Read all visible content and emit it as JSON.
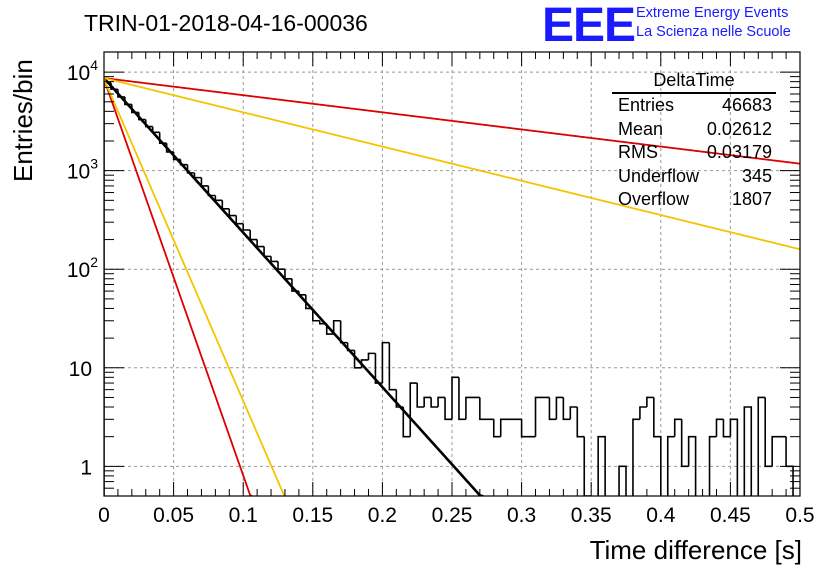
{
  "title": "TRIN-01-2018-04-16-00036",
  "logo": {
    "mark": "EEE",
    "line1": "Extreme Energy Events",
    "line2": "La Scienza nelle Scuole",
    "color": "#1a1aff"
  },
  "stats_box": {
    "name": "DeltaTime",
    "rows": [
      {
        "label": "Entries",
        "value": "46683"
      },
      {
        "label": "Mean",
        "value": "0.02612"
      },
      {
        "label": "RMS",
        "value": "0.03179"
      },
      {
        "label": "Underflow",
        "value": "345"
      },
      {
        "label": "Overflow",
        "value": "1807"
      }
    ]
  },
  "chart_data": {
    "type": "line",
    "xlabel": "Time difference [s]",
    "ylabel": "Entries/bin",
    "xlim": [
      0,
      0.5
    ],
    "ylim": [
      0.5,
      16000
    ],
    "yscale": "log",
    "grid": true,
    "x_ticks": [
      "0",
      "0.05",
      "0.1",
      "0.15",
      "0.2",
      "0.25",
      "0.3",
      "0.35",
      "0.4",
      "0.45",
      "0.5"
    ],
    "y_ticks": [
      {
        "value": 1,
        "label": "1"
      },
      {
        "value": 10,
        "label": "10"
      },
      {
        "value": 100,
        "label": "10^2"
      },
      {
        "value": 1000,
        "label": "10^3"
      },
      {
        "value": 10000,
        "label": "10^4"
      }
    ],
    "histogram": {
      "name": "DeltaTime",
      "bin_width": 0.005,
      "color": "#000000",
      "counts": [
        7800,
        6700,
        5600,
        4700,
        3900,
        3300,
        2800,
        2450,
        1900,
        1550,
        1300,
        1150,
        950,
        850,
        700,
        560,
        500,
        410,
        350,
        290,
        250,
        200,
        170,
        135,
        120,
        100,
        80,
        60,
        55,
        40,
        30,
        28,
        22,
        30,
        18,
        15,
        10,
        12,
        14,
        7,
        18,
        6,
        4,
        2,
        7,
        4,
        5,
        4,
        5,
        3,
        8,
        3,
        5,
        5,
        3,
        3,
        2,
        3,
        3,
        3,
        2,
        2,
        5,
        5,
        3,
        5,
        3,
        4,
        2,
        0.5,
        0,
        2,
        0,
        0,
        1,
        0,
        3,
        4,
        5,
        2,
        0,
        2,
        3,
        1,
        2,
        0,
        0,
        2,
        3,
        2,
        3,
        0,
        4,
        0,
        5,
        1,
        2,
        2,
        1,
        0
      ]
    },
    "series": [
      {
        "style": "fit",
        "color": "#000000",
        "amplitude": 8700,
        "tau": 0.0277
      },
      {
        "style": "reference",
        "color": "#dd0000",
        "amplitude": 8500,
        "tau": 0.0108
      },
      {
        "style": "reference",
        "color": "#f5c400",
        "amplitude": 8500,
        "tau": 0.0133
      },
      {
        "style": "reference",
        "color": "#dd0000",
        "amplitude": 8700,
        "tau": 0.25
      },
      {
        "style": "reference",
        "color": "#f5c400",
        "amplitude": 8700,
        "tau": 0.125
      }
    ]
  }
}
